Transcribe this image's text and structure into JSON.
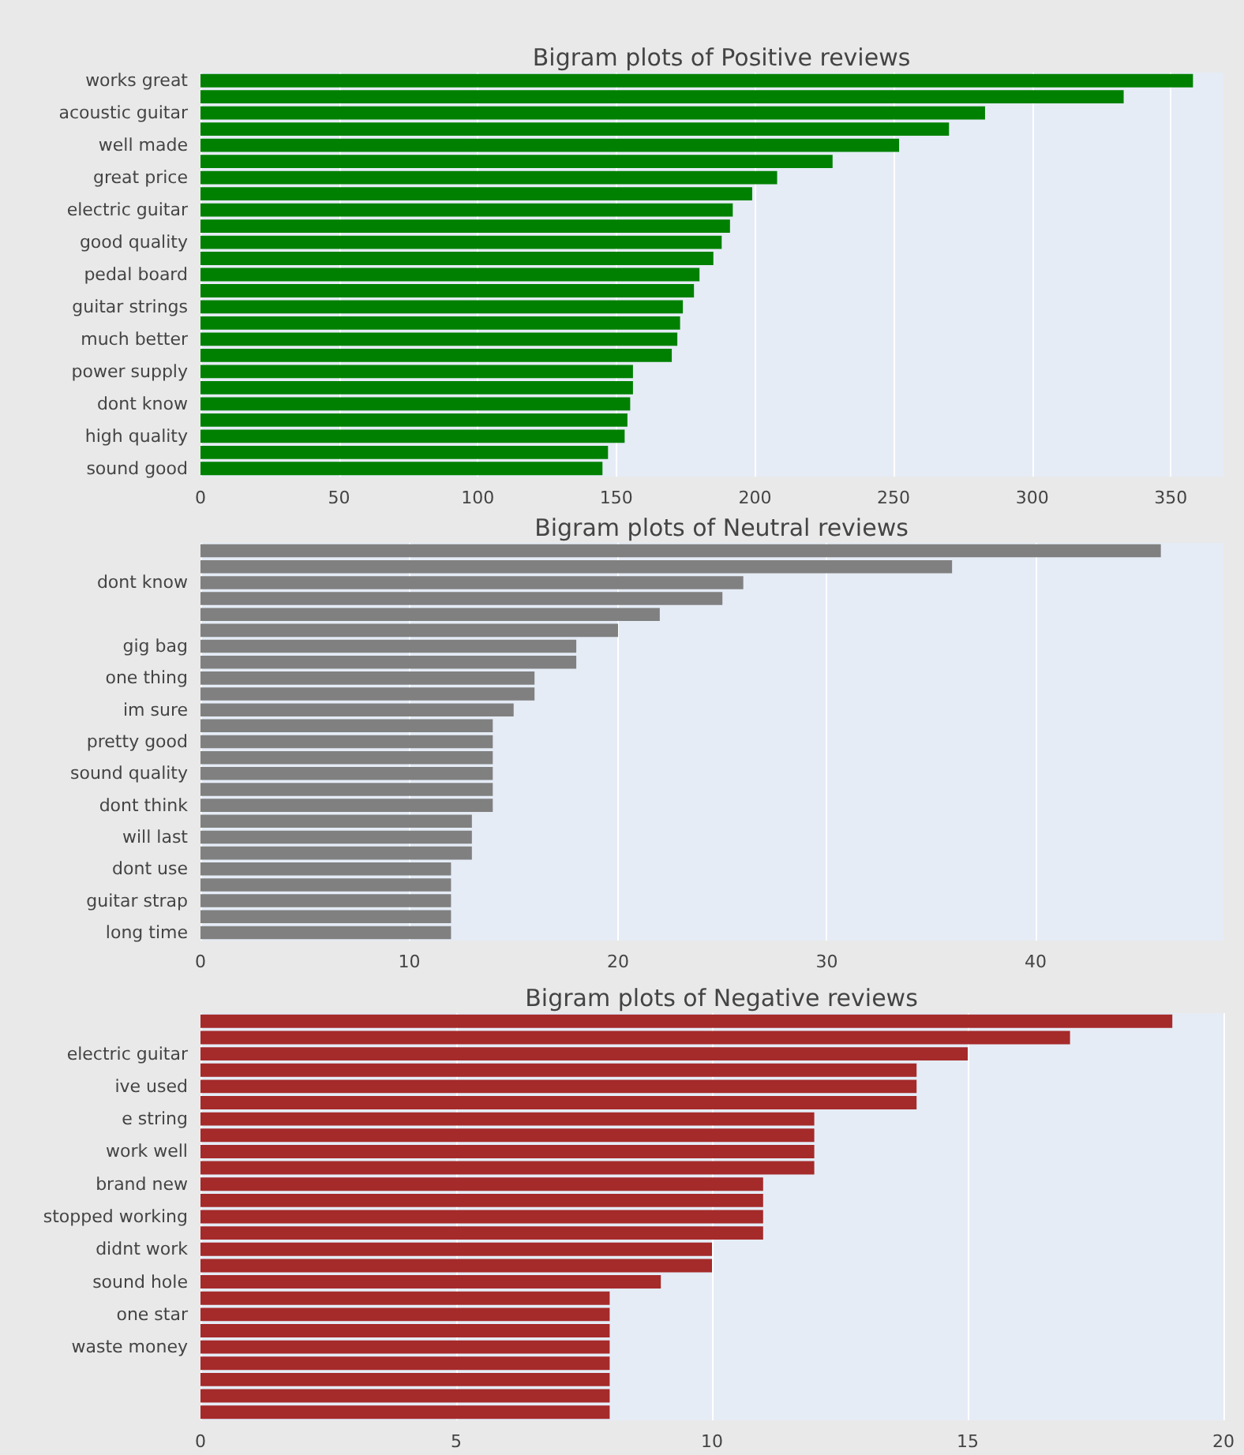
{
  "chart_data": [
    {
      "type": "bar",
      "orientation": "horizontal",
      "title": "Bigram plots of Positive reviews",
      "color": "#008000",
      "grid": "x",
      "xlim": [
        0,
        369
      ],
      "xticks": [
        0,
        50,
        100,
        150,
        200,
        250,
        300,
        350
      ],
      "categories": [
        "works great",
        null,
        "acoustic guitar",
        null,
        "well made",
        null,
        "great price",
        null,
        "electric guitar",
        null,
        "good quality",
        null,
        "pedal board",
        null,
        "guitar strings",
        null,
        "much better",
        null,
        "power supply",
        null,
        "dont know",
        null,
        "high quality",
        null,
        "sound good"
      ],
      "values": [
        358,
        333,
        283,
        270,
        252,
        228,
        208,
        199,
        192,
        191,
        188,
        185,
        180,
        178,
        174,
        173,
        172,
        170,
        156,
        156,
        155,
        154,
        153,
        147,
        145
      ]
    },
    {
      "type": "bar",
      "orientation": "horizontal",
      "title": "Bigram plots of Neutral reviews",
      "color": "#808080",
      "grid": "x",
      "xlim": [
        0,
        49
      ],
      "xticks": [
        0,
        10,
        20,
        30,
        40
      ],
      "categories": [
        null,
        null,
        "dont know",
        null,
        null,
        null,
        "gig bag",
        null,
        "one thing",
        null,
        "im sure",
        null,
        "pretty good",
        null,
        "sound quality",
        null,
        "dont think",
        null,
        "will last",
        null,
        "dont use",
        null,
        "guitar strap",
        null,
        "long time"
      ],
      "values": [
        46,
        36,
        26,
        25,
        22,
        20,
        18,
        18,
        16,
        16,
        15,
        14,
        14,
        14,
        14,
        14,
        14,
        13,
        13,
        13,
        12,
        12,
        12,
        12,
        12
      ]
    },
    {
      "type": "bar",
      "orientation": "horizontal",
      "title": "Bigram plots of Negative reviews",
      "color": "#a52a2a",
      "grid": "x",
      "xlim": [
        0,
        20
      ],
      "xticks": [
        0,
        5,
        10,
        15,
        20
      ],
      "categories": [
        null,
        null,
        "electric guitar",
        null,
        "ive used",
        null,
        "e string",
        null,
        "work well",
        null,
        "brand new",
        null,
        "stopped working",
        null,
        "didnt work",
        null,
        "sound hole",
        null,
        "one star",
        null,
        "waste money",
        null,
        null,
        null,
        null
      ],
      "values": [
        19,
        17,
        15,
        14,
        14,
        14,
        12,
        12,
        12,
        12,
        11,
        11,
        11,
        11,
        10,
        10,
        9,
        8,
        8,
        8,
        8,
        8,
        8,
        8,
        8
      ]
    }
  ]
}
